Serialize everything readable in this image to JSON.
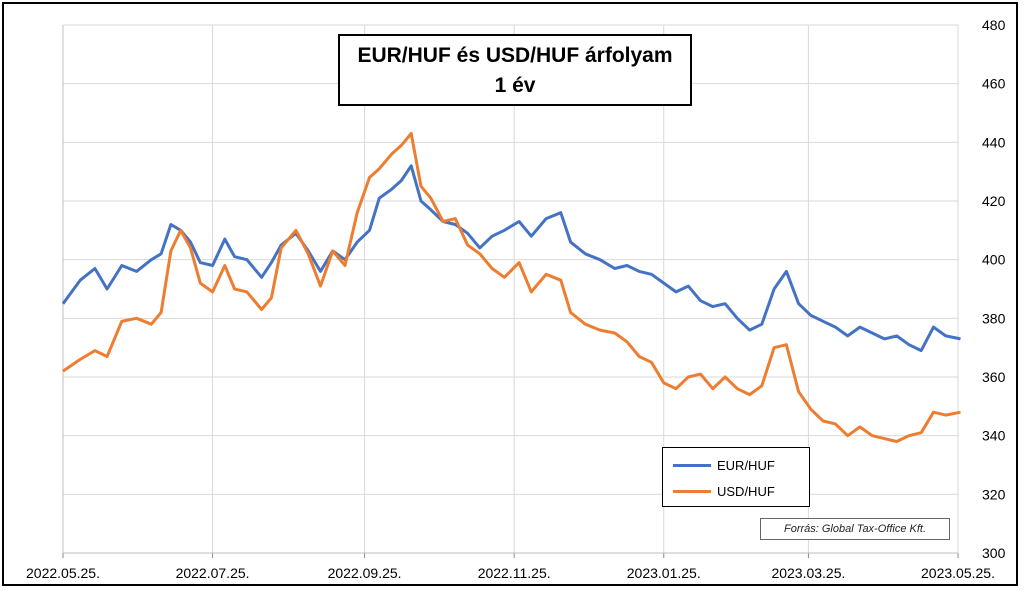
{
  "title_line1": "EUR/HUF és USD/HUF árfolyam",
  "title_line2": "1 év",
  "source": "Forrás: Global Tax-Office Kft.",
  "chart_data": {
    "type": "line",
    "title": "EUR/HUF és USD/HUF árfolyam 1 év",
    "ylim": [
      300,
      480
    ],
    "y_axis_position": "right",
    "y_ticks": [
      300,
      320,
      340,
      360,
      380,
      400,
      420,
      440,
      460,
      480
    ],
    "x_ticks": [
      "2022.05.25.",
      "2022.07.25.",
      "2022.09.25.",
      "2022.11.25.",
      "2023.01.25.",
      "2023.03.25.",
      "2023.05.25."
    ],
    "grid": true,
    "legend_position": "bottom-right",
    "series": [
      {
        "name": "EUR/HUF",
        "color": "#4472C4",
        "points": [
          [
            "2022.05.25",
            385
          ],
          [
            "2022.06.01",
            393
          ],
          [
            "2022.06.07",
            397
          ],
          [
            "2022.06.12",
            390
          ],
          [
            "2022.06.18",
            398
          ],
          [
            "2022.06.24",
            396
          ],
          [
            "2022.06.30",
            400
          ],
          [
            "2022.07.04",
            402
          ],
          [
            "2022.07.08",
            412
          ],
          [
            "2022.07.12",
            410
          ],
          [
            "2022.07.16",
            406
          ],
          [
            "2022.07.20",
            399
          ],
          [
            "2022.07.25",
            398
          ],
          [
            "2022.07.30",
            407
          ],
          [
            "2022.08.03",
            401
          ],
          [
            "2022.08.08",
            400
          ],
          [
            "2022.08.14",
            394
          ],
          [
            "2022.08.18",
            399
          ],
          [
            "2022.08.22",
            405
          ],
          [
            "2022.08.28",
            409
          ],
          [
            "2022.09.02",
            403
          ],
          [
            "2022.09.07",
            396
          ],
          [
            "2022.09.12",
            403
          ],
          [
            "2022.09.17",
            400
          ],
          [
            "2022.09.22",
            406
          ],
          [
            "2022.09.27",
            410
          ],
          [
            "2022.10.01",
            421
          ],
          [
            "2022.10.06",
            424
          ],
          [
            "2022.10.10",
            427
          ],
          [
            "2022.10.14",
            432
          ],
          [
            "2022.10.18",
            420
          ],
          [
            "2022.10.22",
            417
          ],
          [
            "2022.10.27",
            413
          ],
          [
            "2022.11.01",
            412
          ],
          [
            "2022.11.06",
            409
          ],
          [
            "2022.11.11",
            404
          ],
          [
            "2022.11.16",
            408
          ],
          [
            "2022.11.21",
            410
          ],
          [
            "2022.11.27",
            413
          ],
          [
            "2022.12.02",
            408
          ],
          [
            "2022.12.08",
            414
          ],
          [
            "2022.12.14",
            416
          ],
          [
            "2022.12.18",
            406
          ],
          [
            "2022.12.24",
            402
          ],
          [
            "2022.12.30",
            400
          ],
          [
            "2023.01.05",
            397
          ],
          [
            "2023.01.10",
            398
          ],
          [
            "2023.01.15",
            396
          ],
          [
            "2023.01.20",
            395
          ],
          [
            "2023.01.25",
            392
          ],
          [
            "2023.01.30",
            389
          ],
          [
            "2023.02.04",
            391
          ],
          [
            "2023.02.09",
            386
          ],
          [
            "2023.02.14",
            384
          ],
          [
            "2023.02.19",
            385
          ],
          [
            "2023.02.24",
            380
          ],
          [
            "2023.03.01",
            376
          ],
          [
            "2023.03.06",
            378
          ],
          [
            "2023.03.11",
            390
          ],
          [
            "2023.03.16",
            396
          ],
          [
            "2023.03.21",
            385
          ],
          [
            "2023.03.26",
            381
          ],
          [
            "2023.03.31",
            379
          ],
          [
            "2023.04.05",
            377
          ],
          [
            "2023.04.10",
            374
          ],
          [
            "2023.04.15",
            377
          ],
          [
            "2023.04.20",
            375
          ],
          [
            "2023.04.25",
            373
          ],
          [
            "2023.04.30",
            374
          ],
          [
            "2023.05.05",
            371
          ],
          [
            "2023.05.10",
            369
          ],
          [
            "2023.05.15",
            377
          ],
          [
            "2023.05.20",
            374
          ],
          [
            "2023.05.26",
            373
          ]
        ]
      },
      {
        "name": "USD/HUF",
        "color": "#ED7D31",
        "points": [
          [
            "2022.05.25",
            362
          ],
          [
            "2022.06.01",
            366
          ],
          [
            "2022.06.07",
            369
          ],
          [
            "2022.06.12",
            367
          ],
          [
            "2022.06.18",
            379
          ],
          [
            "2022.06.24",
            380
          ],
          [
            "2022.06.30",
            378
          ],
          [
            "2022.07.04",
            382
          ],
          [
            "2022.07.08",
            403
          ],
          [
            "2022.07.12",
            410
          ],
          [
            "2022.07.16",
            404
          ],
          [
            "2022.07.20",
            392
          ],
          [
            "2022.07.25",
            389
          ],
          [
            "2022.07.30",
            398
          ],
          [
            "2022.08.03",
            390
          ],
          [
            "2022.08.08",
            389
          ],
          [
            "2022.08.14",
            383
          ],
          [
            "2022.08.18",
            387
          ],
          [
            "2022.08.22",
            404
          ],
          [
            "2022.08.28",
            410
          ],
          [
            "2022.09.02",
            402
          ],
          [
            "2022.09.07",
            391
          ],
          [
            "2022.09.12",
            403
          ],
          [
            "2022.09.17",
            398
          ],
          [
            "2022.09.22",
            416
          ],
          [
            "2022.09.27",
            428
          ],
          [
            "2022.10.01",
            431
          ],
          [
            "2022.10.06",
            436
          ],
          [
            "2022.10.10",
            439
          ],
          [
            "2022.10.14",
            443
          ],
          [
            "2022.10.18",
            425
          ],
          [
            "2022.10.22",
            421
          ],
          [
            "2022.10.27",
            413
          ],
          [
            "2022.11.01",
            414
          ],
          [
            "2022.11.06",
            405
          ],
          [
            "2022.11.11",
            402
          ],
          [
            "2022.11.16",
            397
          ],
          [
            "2022.11.21",
            394
          ],
          [
            "2022.11.27",
            399
          ],
          [
            "2022.12.02",
            389
          ],
          [
            "2022.12.08",
            395
          ],
          [
            "2022.12.14",
            393
          ],
          [
            "2022.12.18",
            382
          ],
          [
            "2022.12.24",
            378
          ],
          [
            "2022.12.30",
            376
          ],
          [
            "2023.01.05",
            375
          ],
          [
            "2023.01.10",
            372
          ],
          [
            "2023.01.15",
            367
          ],
          [
            "2023.01.20",
            365
          ],
          [
            "2023.01.25",
            358
          ],
          [
            "2023.01.30",
            356
          ],
          [
            "2023.02.04",
            360
          ],
          [
            "2023.02.09",
            361
          ],
          [
            "2023.02.14",
            356
          ],
          [
            "2023.02.19",
            360
          ],
          [
            "2023.02.24",
            356
          ],
          [
            "2023.03.01",
            354
          ],
          [
            "2023.03.06",
            357
          ],
          [
            "2023.03.11",
            370
          ],
          [
            "2023.03.16",
            371
          ],
          [
            "2023.03.21",
            355
          ],
          [
            "2023.03.26",
            349
          ],
          [
            "2023.03.31",
            345
          ],
          [
            "2023.04.05",
            344
          ],
          [
            "2023.04.10",
            340
          ],
          [
            "2023.04.15",
            343
          ],
          [
            "2023.04.20",
            340
          ],
          [
            "2023.04.25",
            339
          ],
          [
            "2023.04.30",
            338
          ],
          [
            "2023.05.05",
            340
          ],
          [
            "2023.05.10",
            341
          ],
          [
            "2023.05.15",
            348
          ],
          [
            "2023.05.20",
            347
          ],
          [
            "2023.05.26",
            348
          ]
        ]
      }
    ]
  }
}
